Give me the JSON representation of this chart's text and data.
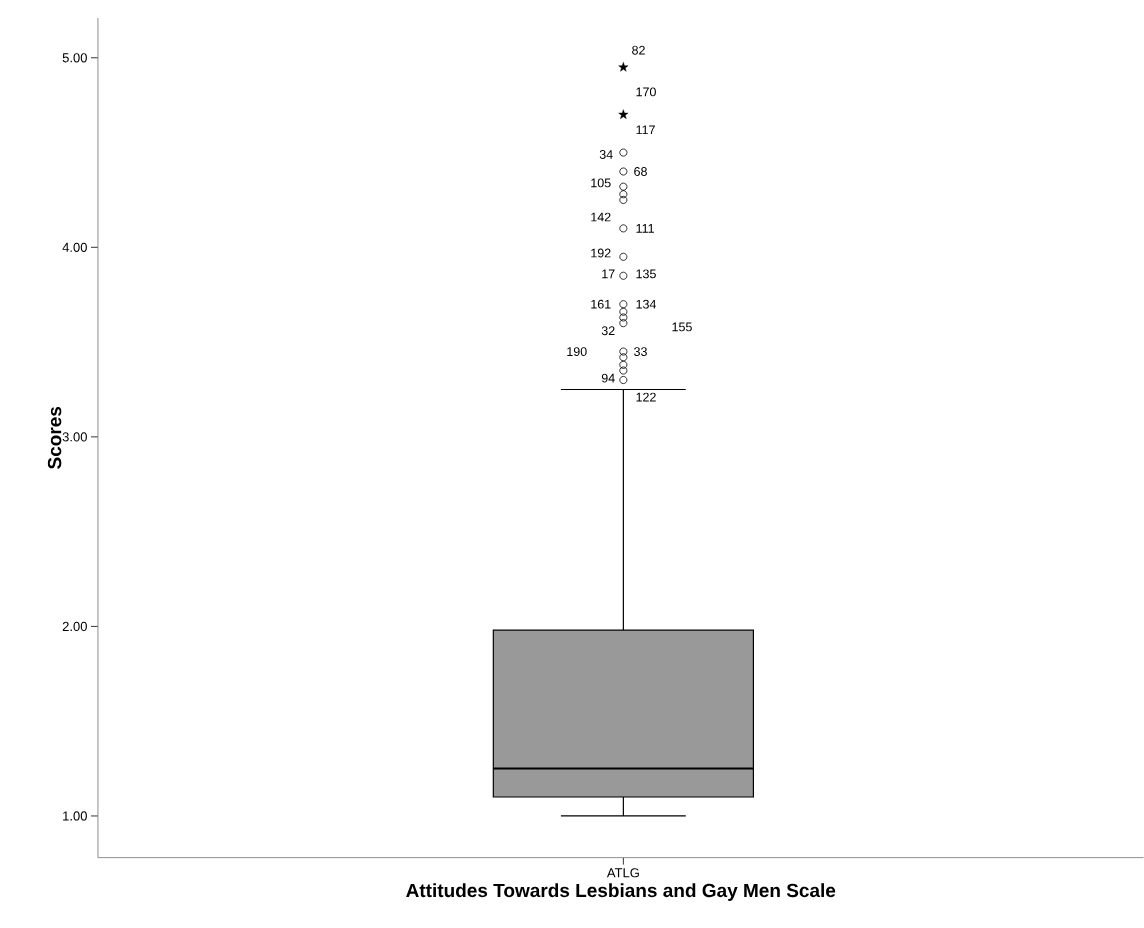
{
  "chart_data": {
    "type": "box",
    "xlabel": "Attitudes Towards Lesbians and Gay Men Scale",
    "ylabel": "Scores",
    "categories": [
      "ATLG"
    ],
    "color": "#999999",
    "ylim": [
      0.78,
      5.21
    ],
    "yticks": [
      {
        "value": 1,
        "label": "1.00"
      },
      {
        "value": 2,
        "label": "2.00"
      },
      {
        "value": 3,
        "label": "3.00"
      },
      {
        "value": 4,
        "label": "4.00"
      },
      {
        "value": 5,
        "label": "5.00"
      }
    ],
    "boxes": [
      {
        "low": 1.0,
        "q1": 1.1,
        "median": 1.25,
        "q3": 1.98,
        "high": 3.25,
        "outliers": [
          4.5,
          4.4,
          4.32,
          4.28,
          4.25,
          4.1,
          3.95,
          3.85,
          3.7,
          3.66,
          3.63,
          3.6,
          3.45,
          3.42,
          3.38,
          3.35,
          3.3
        ]
      }
    ],
    "series": [
      {
        "type": "scatter",
        "marker": "star",
        "color": "#000000",
        "x": [
          "ATLG",
          "ATLG"
        ],
        "values": [
          4.95,
          4.7
        ]
      }
    ],
    "annotations": [
      "82",
      "170",
      "117",
      "34",
      "68",
      "105",
      "142",
      "111",
      "192",
      "17",
      "135",
      "161",
      "134",
      "155",
      "32",
      "190",
      "33",
      "94",
      "122"
    ]
  }
}
